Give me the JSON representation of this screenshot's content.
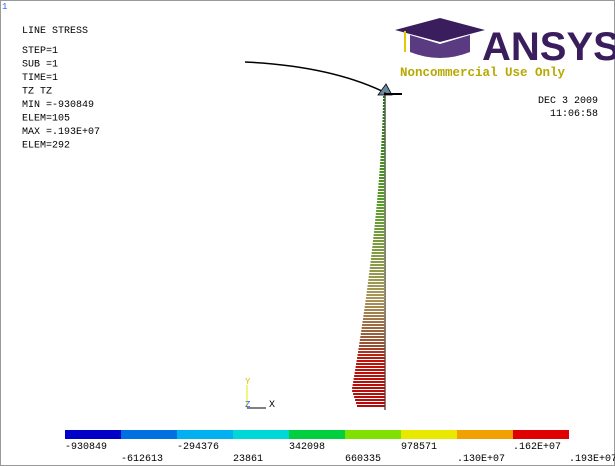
{
  "window_number": "1",
  "info": {
    "title": "LINE STRESS",
    "lines": [
      "STEP=1",
      "SUB =1",
      "TIME=1",
      "TZ       TZ",
      "MIN =-930849",
      "ELEM=105",
      "MAX =.193E+07",
      "ELEM=292"
    ]
  },
  "logo": {
    "name": "ANSYS",
    "tagline": "Noncommercial Use Only"
  },
  "date": "DEC  3 2009",
  "time": "11:06:58",
  "axes": {
    "y": "Y",
    "z": "Z",
    "x": "X"
  },
  "legend": {
    "colors": [
      "#0000c8",
      "#0070e0",
      "#00b0f0",
      "#00d8d8",
      "#00d040",
      "#80e000",
      "#e8e800",
      "#f0a000",
      "#e00000"
    ],
    "top_labels": [
      "-930849",
      "-294376",
      "342098",
      "978571",
      ".162E+07"
    ],
    "bottom_labels": [
      "-612613",
      "23861",
      "660335",
      ".130E+07",
      ".193E+07"
    ]
  }
}
